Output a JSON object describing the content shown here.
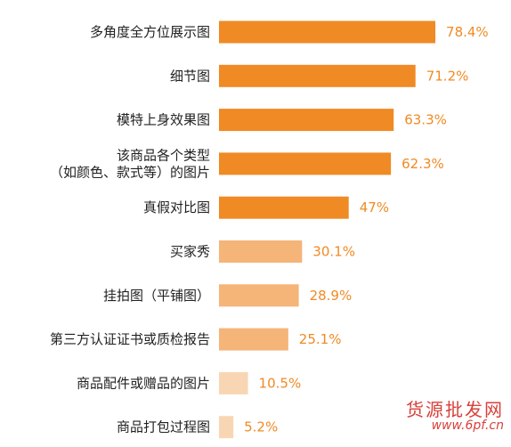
{
  "chart_data": {
    "type": "bar",
    "orientation": "horizontal",
    "categories": [
      [
        "多角度全方位展示图"
      ],
      [
        "细节图"
      ],
      [
        "模特上身效果图"
      ],
      [
        "该商品各个类型",
        "（如颜色、款式等）的图片"
      ],
      [
        "真假对比图"
      ],
      [
        "买家秀"
      ],
      [
        "挂拍图（平铺图）"
      ],
      [
        "第三方认证证书或质检报告"
      ],
      [
        "商品配件或赠品的图片"
      ],
      [
        "商品打包过程图"
      ]
    ],
    "values": [
      78.4,
      71.2,
      63.3,
      62.3,
      47,
      30.1,
      28.9,
      25.1,
      10.5,
      5.2
    ],
    "value_labels": [
      "78.4%",
      "71.2%",
      "63.3%",
      "62.3%",
      "47%",
      "30.1%",
      "28.9%",
      "25.1%",
      "10.5%",
      "5.2%"
    ],
    "bar_colors": [
      "#f08a24",
      "#f08a24",
      "#f08a24",
      "#f08a24",
      "#f08a24",
      "#f5b478",
      "#f5b478",
      "#f5b478",
      "#f9d6b3",
      "#f9d6b3"
    ],
    "label_color": "#f08a24",
    "xlim": [
      0,
      100
    ],
    "grid": false,
    "legend": "none"
  },
  "watermark": {
    "text": "货源批发网",
    "url": "www.6pf.cn"
  }
}
